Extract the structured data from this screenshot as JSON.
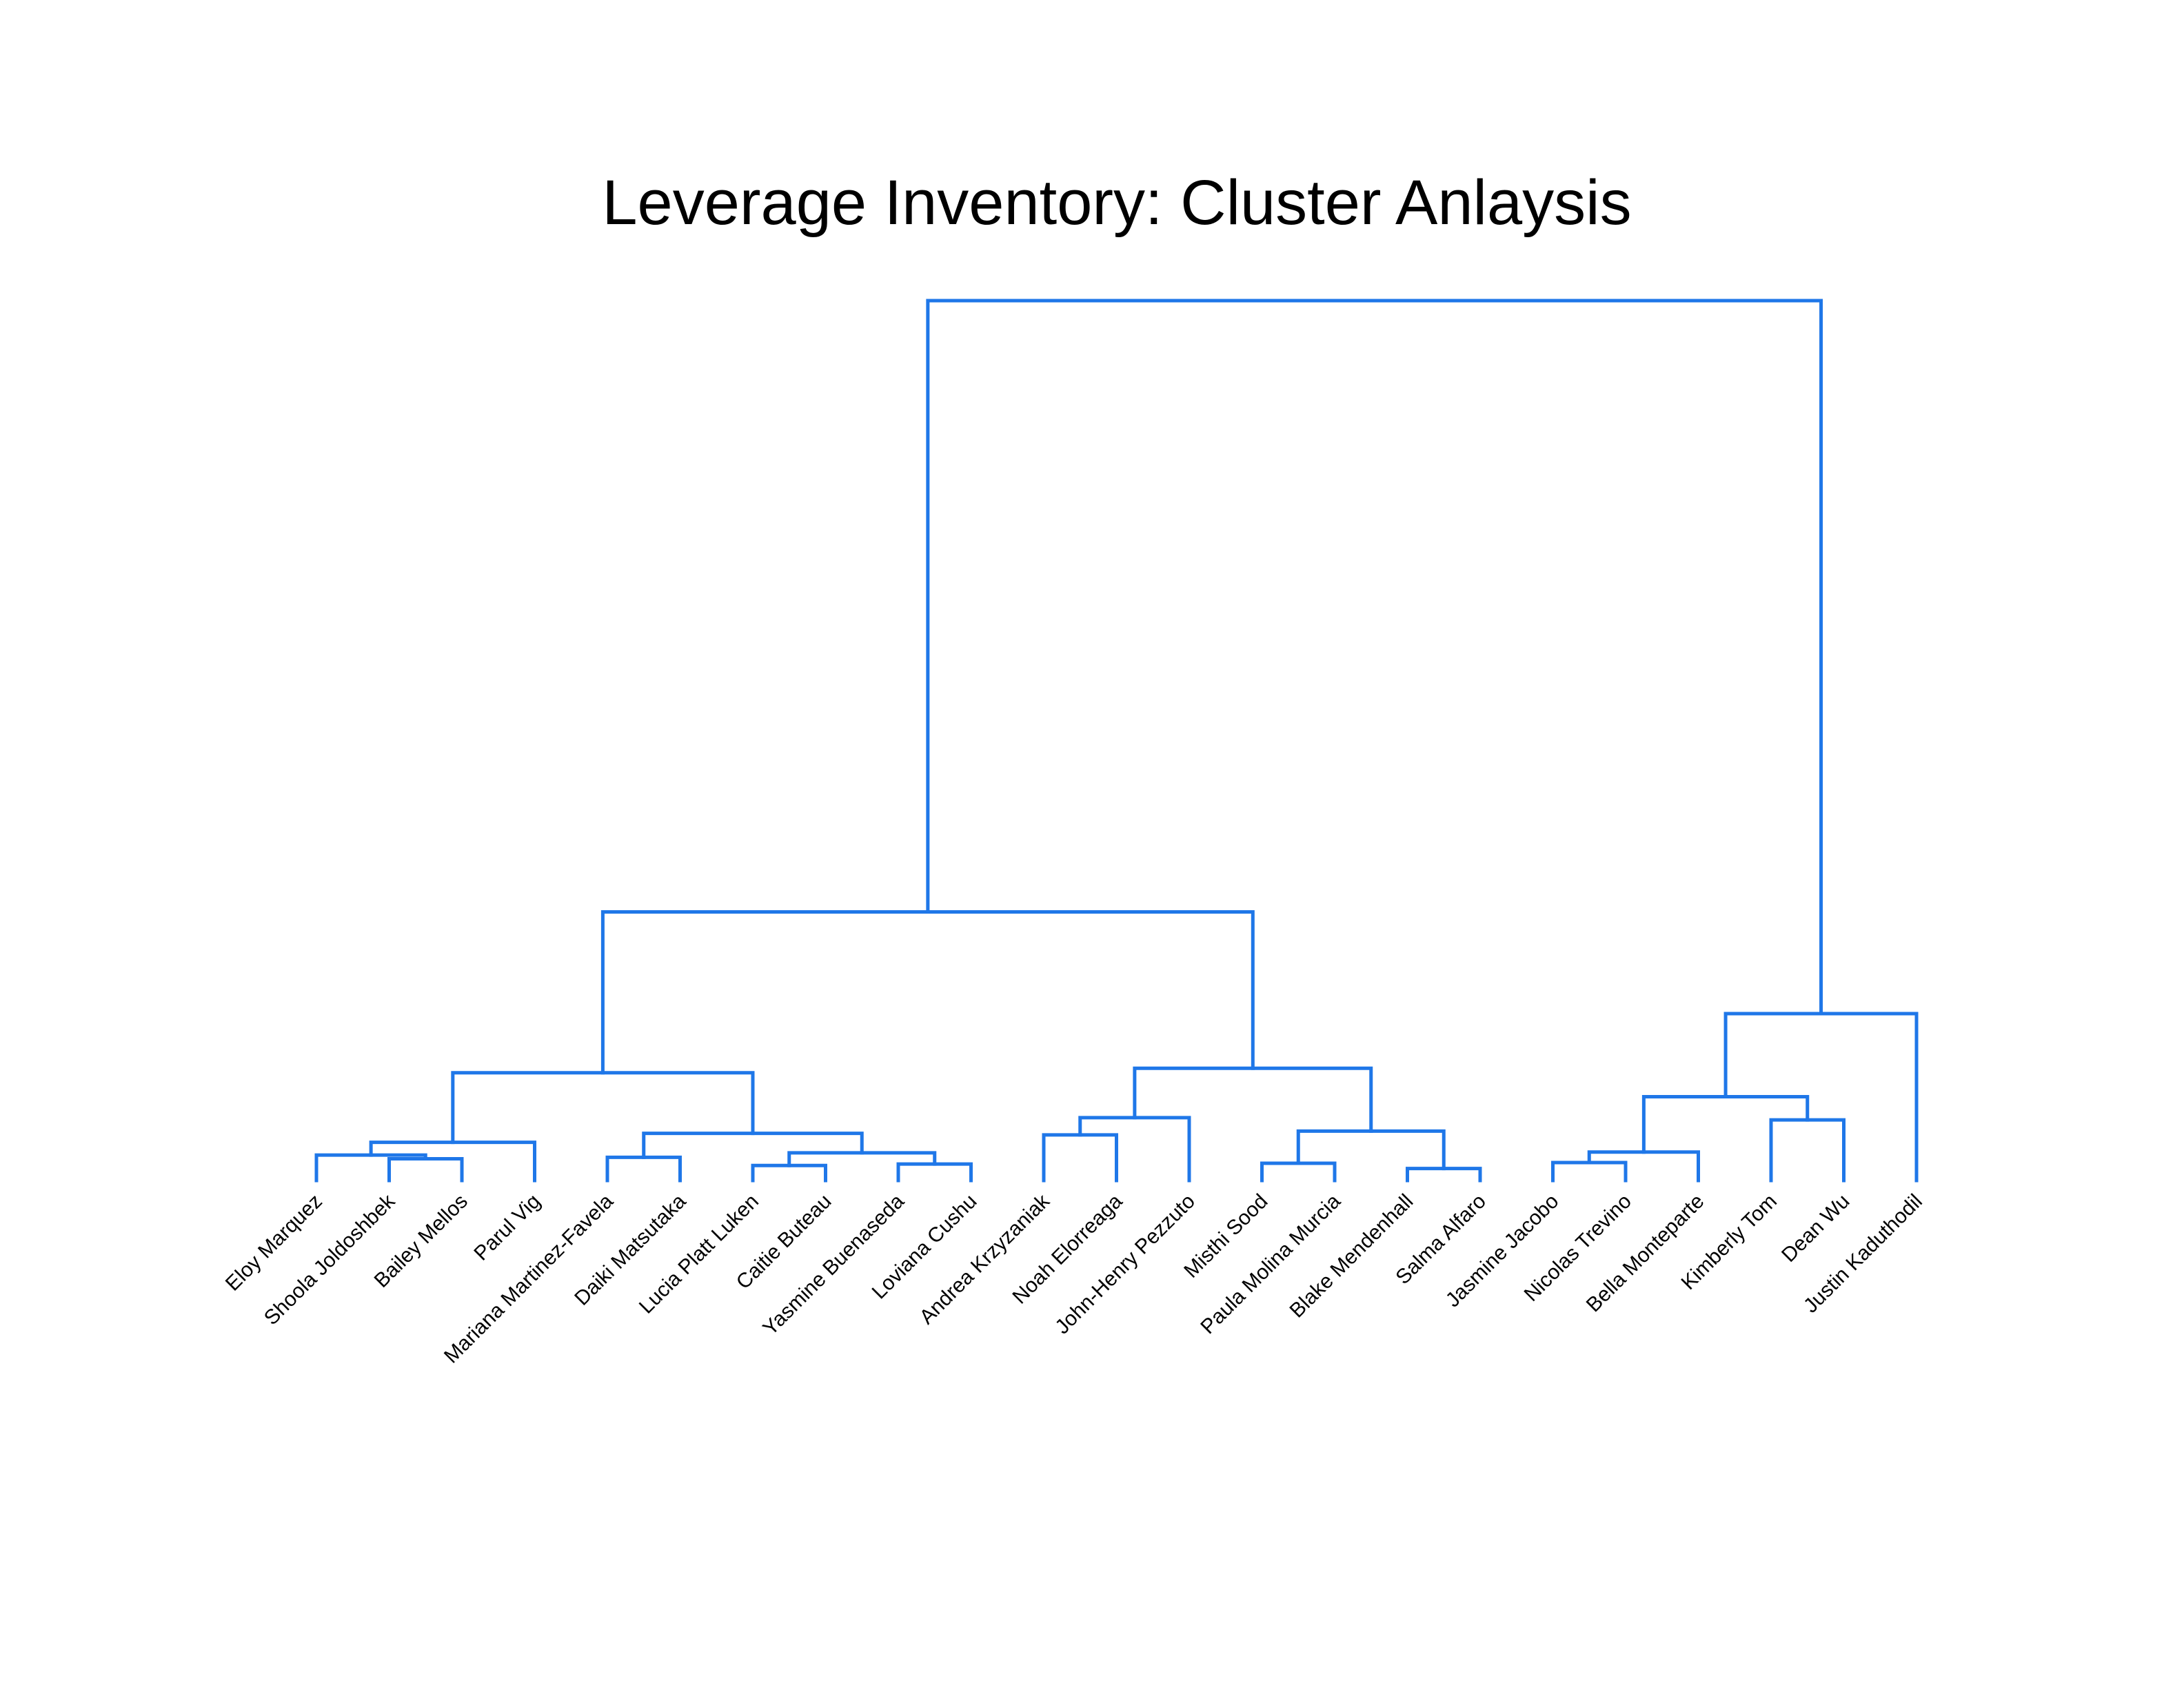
{
  "title": "Leverage Inventory: Cluster Anlaysis",
  "colors": {
    "link": "#1f77e8",
    "text": "#000000",
    "background": "#ffffff"
  },
  "chart_data": {
    "type": "dendrogram",
    "title": "Leverage Inventory: Cluster Anlaysis",
    "axes_visible": false,
    "leaf_order": [
      "Eloy Marquez",
      "Shoola Joldoshbek",
      "Bailey Mellos",
      "Parul Vig",
      "Mariana Martinez-Favela",
      "Daiki Matsutaka",
      "Lucia Platt Luken",
      "Caitie Buteau",
      "Yasmine Buenaseda",
      "Loviana Cushu",
      "Andrea Krzyzaniak",
      "Noah Elorreaga",
      "John-Henry Pezzuto",
      "Misthi Sood",
      "Paula Molina Murcia",
      "Blake Mendenhall",
      "Salma Alfaro",
      "Jasmine Jacobo",
      "Nicolas Trevino",
      "Bella Monteparte",
      "Kimberly Tom",
      "Dean Wu",
      "Justin Kaduthodil"
    ],
    "merges": [
      {
        "id": "c1",
        "children": [
          "Shoola Joldoshbek",
          "Bailey Mellos"
        ],
        "height": 0.29
      },
      {
        "id": "c2",
        "children": [
          "Eloy Marquez",
          "c1"
        ],
        "height": 0.34
      },
      {
        "id": "c3",
        "children": [
          "c2",
          "Parul Vig"
        ],
        "height": 0.51
      },
      {
        "id": "c4",
        "children": [
          "Mariana Martinez-Favela",
          "Daiki Matsutaka"
        ],
        "height": 0.31
      },
      {
        "id": "c5",
        "children": [
          "Lucia Platt Luken",
          "Caitie Buteau"
        ],
        "height": 0.2
      },
      {
        "id": "c6",
        "children": [
          "Yasmine Buenaseda",
          "Loviana Cushu"
        ],
        "height": 0.22
      },
      {
        "id": "c7",
        "children": [
          "c5",
          "c6"
        ],
        "height": 0.37
      },
      {
        "id": "c8",
        "children": [
          "c4",
          "c7"
        ],
        "height": 0.63
      },
      {
        "id": "c9",
        "children": [
          "c3",
          "c8"
        ],
        "height": 1.44
      },
      {
        "id": "c10",
        "children": [
          "Andrea Krzyzaniak",
          "Noah Elorreaga"
        ],
        "height": 0.61
      },
      {
        "id": "c11",
        "children": [
          "c10",
          "John-Henry Pezzuto"
        ],
        "height": 0.84
      },
      {
        "id": "c12",
        "children": [
          "Misthi Sood",
          "Paula Molina Murcia"
        ],
        "height": 0.23
      },
      {
        "id": "c13",
        "children": [
          "Blake Mendenhall",
          "Salma Alfaro"
        ],
        "height": 0.16
      },
      {
        "id": "c14",
        "children": [
          "c12",
          "c13"
        ],
        "height": 0.66
      },
      {
        "id": "c15",
        "children": [
          "c11",
          "c14"
        ],
        "height": 1.5
      },
      {
        "id": "c16",
        "children": [
          "c9",
          "c15"
        ],
        "height": 3.59
      },
      {
        "id": "c17",
        "children": [
          "Jasmine Jacobo",
          "Nicolas Trevino"
        ],
        "height": 0.24
      },
      {
        "id": "c18",
        "children": [
          "c17",
          "Bella Monteparte"
        ],
        "height": 0.38
      },
      {
        "id": "c19",
        "children": [
          "Kimberly Tom",
          "Dean Wu"
        ],
        "height": 0.81
      },
      {
        "id": "c20",
        "children": [
          "c18",
          "c19"
        ],
        "height": 1.12
      },
      {
        "id": "c21",
        "children": [
          "c20",
          "Justin Kaduthodil"
        ],
        "height": 2.23
      },
      {
        "id": "c22",
        "children": [
          "c16",
          "c21"
        ],
        "height": 11.76
      }
    ],
    "ylim": [
      0,
      12
    ]
  }
}
